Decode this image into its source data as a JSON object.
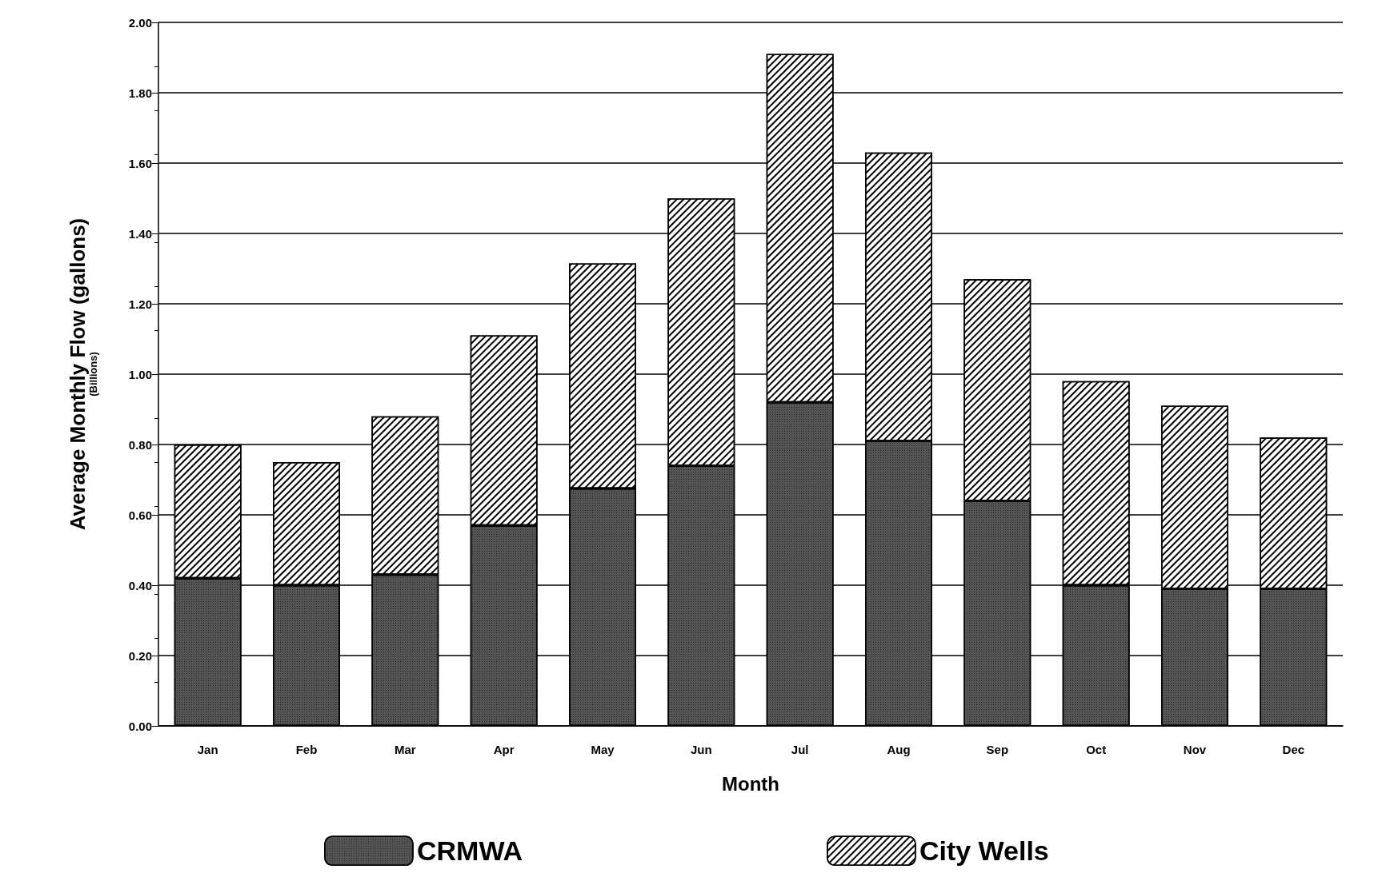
{
  "chart_data": {
    "type": "bar",
    "stacked": true,
    "xlabel": "Month",
    "ylabel": "Average Monthly Flow (gallons)\n(Billions)",
    "categories": [
      "Jan",
      "Feb",
      "Mar",
      "Apr",
      "May",
      "Jun",
      "Jul",
      "Aug",
      "Sep",
      "Oct",
      "Nov",
      "Dec"
    ],
    "series": [
      {
        "name": "CRMWA",
        "color": "#555555",
        "values": [
          0.42,
          0.4,
          0.43,
          0.57,
          0.675,
          0.74,
          0.92,
          0.81,
          0.64,
          0.4,
          0.39,
          0.39
        ]
      },
      {
        "name": "City Wells",
        "color": "#ffffff",
        "values": [
          0.38,
          0.35,
          0.45,
          0.54,
          0.64,
          0.76,
          0.99,
          0.82,
          0.63,
          0.58,
          0.52,
          0.43
        ]
      }
    ],
    "ylim": [
      0,
      2
    ],
    "yticks": [
      {
        "value": 0,
        "label": "0.00"
      },
      {
        "value": 0.2,
        "label": "0.20"
      },
      {
        "value": 0.4,
        "label": "0.40"
      },
      {
        "value": 0.6,
        "label": "0.60"
      },
      {
        "value": 0.8,
        "label": "0.80"
      },
      {
        "value": 1,
        "label": "1.00"
      },
      {
        "value": 1.2,
        "label": "1.20"
      },
      {
        "value": 1.4,
        "label": "1.40"
      },
      {
        "value": 1.6,
        "label": "1.60"
      },
      {
        "value": 1.8,
        "label": "1.80"
      },
      {
        "value": 2,
        "label": "2.00"
      }
    ],
    "grid": "y",
    "legend": "bottom"
  }
}
